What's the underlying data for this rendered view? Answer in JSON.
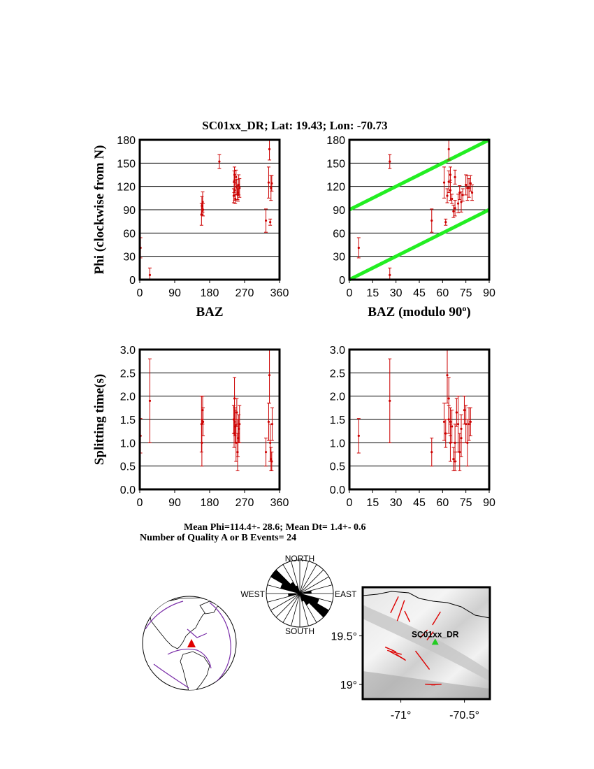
{
  "header": {
    "title": "SC01xx_DR; Lat:  19.43;  Lon:  -70.73"
  },
  "chart_data": [
    {
      "id": "phi_vs_baz",
      "type": "scatter",
      "xlabel": "BAZ",
      "ylabel": "Phi (clockwise from N)",
      "xlim": [
        0,
        360
      ],
      "ylim": [
        0,
        180
      ],
      "xticks": [
        "0",
        "90",
        "180",
        "270",
        "360"
      ],
      "yticks": [
        "0",
        "30",
        "60",
        "90",
        "120",
        "150",
        "180"
      ],
      "grid": "horizontal",
      "points": [
        {
          "x": 2,
          "y": 41,
          "err": 13
        },
        {
          "x": 26,
          "y": 6,
          "err": 9
        },
        {
          "x": 159,
          "y": 84,
          "err": 14
        },
        {
          "x": 160,
          "y": 95,
          "err": 12
        },
        {
          "x": 162,
          "y": 100,
          "err": 13
        },
        {
          "x": 163,
          "y": 90,
          "err": 8
        },
        {
          "x": 205,
          "y": 152,
          "err": 9
        },
        {
          "x": 242,
          "y": 108,
          "err": 9
        },
        {
          "x": 243,
          "y": 126,
          "err": 14
        },
        {
          "x": 244,
          "y": 135,
          "err": 10
        },
        {
          "x": 245,
          "y": 115,
          "err": 13
        },
        {
          "x": 246,
          "y": 104,
          "err": 6
        },
        {
          "x": 248,
          "y": 132,
          "err": 9
        },
        {
          "x": 250,
          "y": 119,
          "err": 10
        },
        {
          "x": 252,
          "y": 112,
          "err": 9
        },
        {
          "x": 253,
          "y": 109,
          "err": 8
        },
        {
          "x": 255,
          "y": 122,
          "err": 13
        },
        {
          "x": 257,
          "y": 118,
          "err": 12
        },
        {
          "x": 325,
          "y": 76,
          "err": 15
        },
        {
          "x": 332,
          "y": 125,
          "err": 20
        },
        {
          "x": 334,
          "y": 168,
          "err": 14
        },
        {
          "x": 336,
          "y": 74,
          "err": 4
        },
        {
          "x": 338,
          "y": 118,
          "err": 16
        },
        {
          "x": 340,
          "y": 124,
          "err": 10
        }
      ]
    },
    {
      "id": "phi_vs_baz_mod90",
      "type": "scatter",
      "xlabel": "BAZ (modulo 90",
      "xlabel_sup": "o",
      "xlabel_end": ")",
      "ylabel": "",
      "xlim": [
        0,
        90
      ],
      "ylim": [
        0,
        180
      ],
      "xticks": [
        "0",
        "15",
        "30",
        "45",
        "60",
        "75",
        "90"
      ],
      "yticks": [
        "0",
        "30",
        "60",
        "90",
        "120",
        "150",
        "180"
      ],
      "grid": "horizontal",
      "reference_lines": [
        {
          "x": [
            0,
            90
          ],
          "y": [
            0,
            90
          ],
          "color": "#22ee22"
        },
        {
          "x": [
            0,
            90
          ],
          "y": [
            90,
            180
          ],
          "color": "#22ee22"
        }
      ],
      "points": [
        {
          "x": 6,
          "y": 41,
          "err": 13
        },
        {
          "x": 26,
          "y": 6,
          "err": 9
        },
        {
          "x": 26,
          "y": 152,
          "err": 9
        },
        {
          "x": 53,
          "y": 76,
          "err": 15
        },
        {
          "x": 61,
          "y": 125,
          "err": 20
        },
        {
          "x": 62,
          "y": 74,
          "err": 4
        },
        {
          "x": 63,
          "y": 108,
          "err": 9
        },
        {
          "x": 64,
          "y": 168,
          "err": 14
        },
        {
          "x": 64,
          "y": 126,
          "err": 14
        },
        {
          "x": 65,
          "y": 135,
          "err": 10
        },
        {
          "x": 65,
          "y": 115,
          "err": 13
        },
        {
          "x": 66,
          "y": 104,
          "err": 6
        },
        {
          "x": 67,
          "y": 88,
          "err": 8
        },
        {
          "x": 68,
          "y": 92,
          "err": 10
        },
        {
          "x": 68,
          "y": 132,
          "err": 9
        },
        {
          "x": 70,
          "y": 98,
          "err": 12
        },
        {
          "x": 71,
          "y": 112,
          "err": 9
        },
        {
          "x": 72,
          "y": 100,
          "err": 13
        },
        {
          "x": 73,
          "y": 109,
          "err": 8
        },
        {
          "x": 75,
          "y": 122,
          "err": 13
        },
        {
          "x": 76,
          "y": 118,
          "err": 16
        },
        {
          "x": 77,
          "y": 118,
          "err": 12
        },
        {
          "x": 78,
          "y": 124,
          "err": 10
        },
        {
          "x": 79,
          "y": 112,
          "err": 10
        }
      ]
    },
    {
      "id": "dt_vs_baz",
      "type": "scatter",
      "xlabel": "",
      "ylabel": "Splitting time(s)",
      "xlim": [
        0,
        360
      ],
      "ylim": [
        0,
        3
      ],
      "xticks": [
        "0",
        "90",
        "180",
        "270",
        "360"
      ],
      "yticks": [
        "0.0",
        "0.5",
        "1.0",
        "1.5",
        "2.0",
        "2.5",
        "3.0"
      ],
      "grid": "horizontal",
      "points": [
        {
          "x": 2,
          "y": 1.15,
          "err": 0.37
        },
        {
          "x": 26,
          "y": 1.9,
          "err": 0.9
        },
        {
          "x": 159,
          "y": 1.4,
          "err": 0.6
        },
        {
          "x": 160,
          "y": 1.0,
          "err": 0.5
        },
        {
          "x": 162,
          "y": 1.7,
          "err": 0.3
        },
        {
          "x": 163,
          "y": 1.45,
          "err": 0.3
        },
        {
          "x": 242,
          "y": 1.5,
          "err": 0.3
        },
        {
          "x": 243,
          "y": 1.2,
          "err": 0.3
        },
        {
          "x": 244,
          "y": 1.95,
          "err": 0.45
        },
        {
          "x": 245,
          "y": 1.45,
          "err": 0.3
        },
        {
          "x": 246,
          "y": 1.35,
          "err": 0.35
        },
        {
          "x": 248,
          "y": 1.0,
          "err": 0.4
        },
        {
          "x": 250,
          "y": 1.65,
          "err": 0.3
        },
        {
          "x": 252,
          "y": 0.8,
          "err": 0.4
        },
        {
          "x": 253,
          "y": 1.1,
          "err": 0.4
        },
        {
          "x": 255,
          "y": 1.3,
          "err": 0.3
        },
        {
          "x": 257,
          "y": 1.4,
          "err": 0.4
        },
        {
          "x": 325,
          "y": 0.8,
          "err": 0.3
        },
        {
          "x": 332,
          "y": 1.45,
          "err": 0.4
        },
        {
          "x": 334,
          "y": 2.45,
          "err": 0.6
        },
        {
          "x": 336,
          "y": 1.0,
          "err": 0.4
        },
        {
          "x": 338,
          "y": 0.65,
          "err": 0.25
        },
        {
          "x": 340,
          "y": 0.6,
          "err": 0.2
        },
        {
          "x": 341,
          "y": 1.4,
          "err": 0.35
        }
      ]
    },
    {
      "id": "dt_vs_baz_mod90",
      "type": "scatter",
      "xlabel": "",
      "ylabel": "",
      "xlim": [
        0,
        90
      ],
      "ylim": [
        0,
        3
      ],
      "xticks": [
        "0",
        "15",
        "30",
        "45",
        "60",
        "75",
        "90"
      ],
      "yticks": [
        "0.0",
        "0.5",
        "1.0",
        "1.5",
        "2.0",
        "2.5",
        "3.0"
      ],
      "grid": "horizontal",
      "points": [
        {
          "x": 6,
          "y": 1.15,
          "err": 0.37
        },
        {
          "x": 26,
          "y": 1.9,
          "err": 0.9
        },
        {
          "x": 53,
          "y": 0.8,
          "err": 0.3
        },
        {
          "x": 61,
          "y": 1.45,
          "err": 0.4
        },
        {
          "x": 62,
          "y": 1.2,
          "err": 0.3
        },
        {
          "x": 63,
          "y": 2.45,
          "err": 0.6
        },
        {
          "x": 64,
          "y": 1.5,
          "err": 0.3
        },
        {
          "x": 64,
          "y": 1.95,
          "err": 0.45
        },
        {
          "x": 65,
          "y": 1.0,
          "err": 0.4
        },
        {
          "x": 65,
          "y": 1.45,
          "err": 0.3
        },
        {
          "x": 66,
          "y": 1.35,
          "err": 0.35
        },
        {
          "x": 67,
          "y": 0.65,
          "err": 0.25
        },
        {
          "x": 68,
          "y": 1.0,
          "err": 0.4
        },
        {
          "x": 68,
          "y": 0.6,
          "err": 0.2
        },
        {
          "x": 69,
          "y": 1.65,
          "err": 0.3
        },
        {
          "x": 70,
          "y": 1.4,
          "err": 0.6
        },
        {
          "x": 71,
          "y": 0.8,
          "err": 0.4
        },
        {
          "x": 72,
          "y": 1.1,
          "err": 0.4
        },
        {
          "x": 72,
          "y": 1.3,
          "err": 0.3
        },
        {
          "x": 74,
          "y": 1.7,
          "err": 0.3
        },
        {
          "x": 75,
          "y": 1.4,
          "err": 0.4
        },
        {
          "x": 76,
          "y": 1.0,
          "err": 0.5
        },
        {
          "x": 77,
          "y": 1.4,
          "err": 0.35
        },
        {
          "x": 78,
          "y": 1.45,
          "err": 0.3
        }
      ]
    }
  ],
  "stats": {
    "mean_line": "Mean Phi=114.4+- 28.6; Mean Dt=  1.4+-  0.6",
    "count_line": "Number of Quality A or B Events= 24"
  },
  "rose": {
    "labels": {
      "north": "NORTH",
      "south": "SOUTH",
      "east": "EAST",
      "west": "WEST"
    },
    "bins_deg": 15,
    "filled_bins": [
      {
        "from": 105,
        "to": 120,
        "r": 0.6
      },
      {
        "from": 120,
        "to": 135,
        "r": 1.0
      },
      {
        "from": 135,
        "to": 150,
        "r": 0.4
      },
      {
        "from": 75,
        "to": 90,
        "r": 0.35
      },
      {
        "from": 150,
        "to": 165,
        "r": 0.25
      }
    ]
  },
  "globe": {
    "station_marker_color": "#e00000",
    "plate_boundary_color": "#7a2ea8"
  },
  "map": {
    "station_label": "SC01xx_DR",
    "station_marker_color": "#22cc22",
    "lat_ticks": [
      "19.5",
      "19"
    ],
    "lon_ticks": [
      "-71",
      "-70.5"
    ],
    "degree_symbol": "°",
    "lat_range": [
      18.85,
      20.0
    ],
    "lon_range": [
      -71.3,
      -70.3
    ],
    "station": {
      "lat": 19.43,
      "lon": -70.73
    },
    "split_bars": [
      {
        "lat": 19.82,
        "lon": -71.05,
        "az": 20,
        "len": 0.18
      },
      {
        "lat": 19.76,
        "lon": -71.0,
        "az": 15,
        "len": 0.22
      },
      {
        "lat": 19.7,
        "lon": -70.95,
        "az": 160,
        "len": 0.12
      },
      {
        "lat": 19.68,
        "lon": -70.72,
        "az": 25,
        "len": 0.15
      },
      {
        "lat": 19.52,
        "lon": -70.82,
        "az": 35,
        "len": 0.1
      },
      {
        "lat": 19.5,
        "lon": -70.77,
        "az": 30,
        "len": 0.1
      },
      {
        "lat": 19.36,
        "lon": -71.08,
        "az": 120,
        "len": 0.1
      },
      {
        "lat": 19.33,
        "lon": -71.05,
        "az": 110,
        "len": 0.12
      },
      {
        "lat": 19.3,
        "lon": -71.03,
        "az": 125,
        "len": 0.14
      },
      {
        "lat": 19.28,
        "lon": -71.0,
        "az": 130,
        "len": 0.1
      },
      {
        "lat": 19.25,
        "lon": -70.83,
        "az": 150,
        "len": 0.22
      },
      {
        "lat": 19.0,
        "lon": -70.77,
        "az": 95,
        "len": 0.08
      },
      {
        "lat": 19.0,
        "lon": -70.72,
        "az": 85,
        "len": 0.08
      }
    ]
  }
}
